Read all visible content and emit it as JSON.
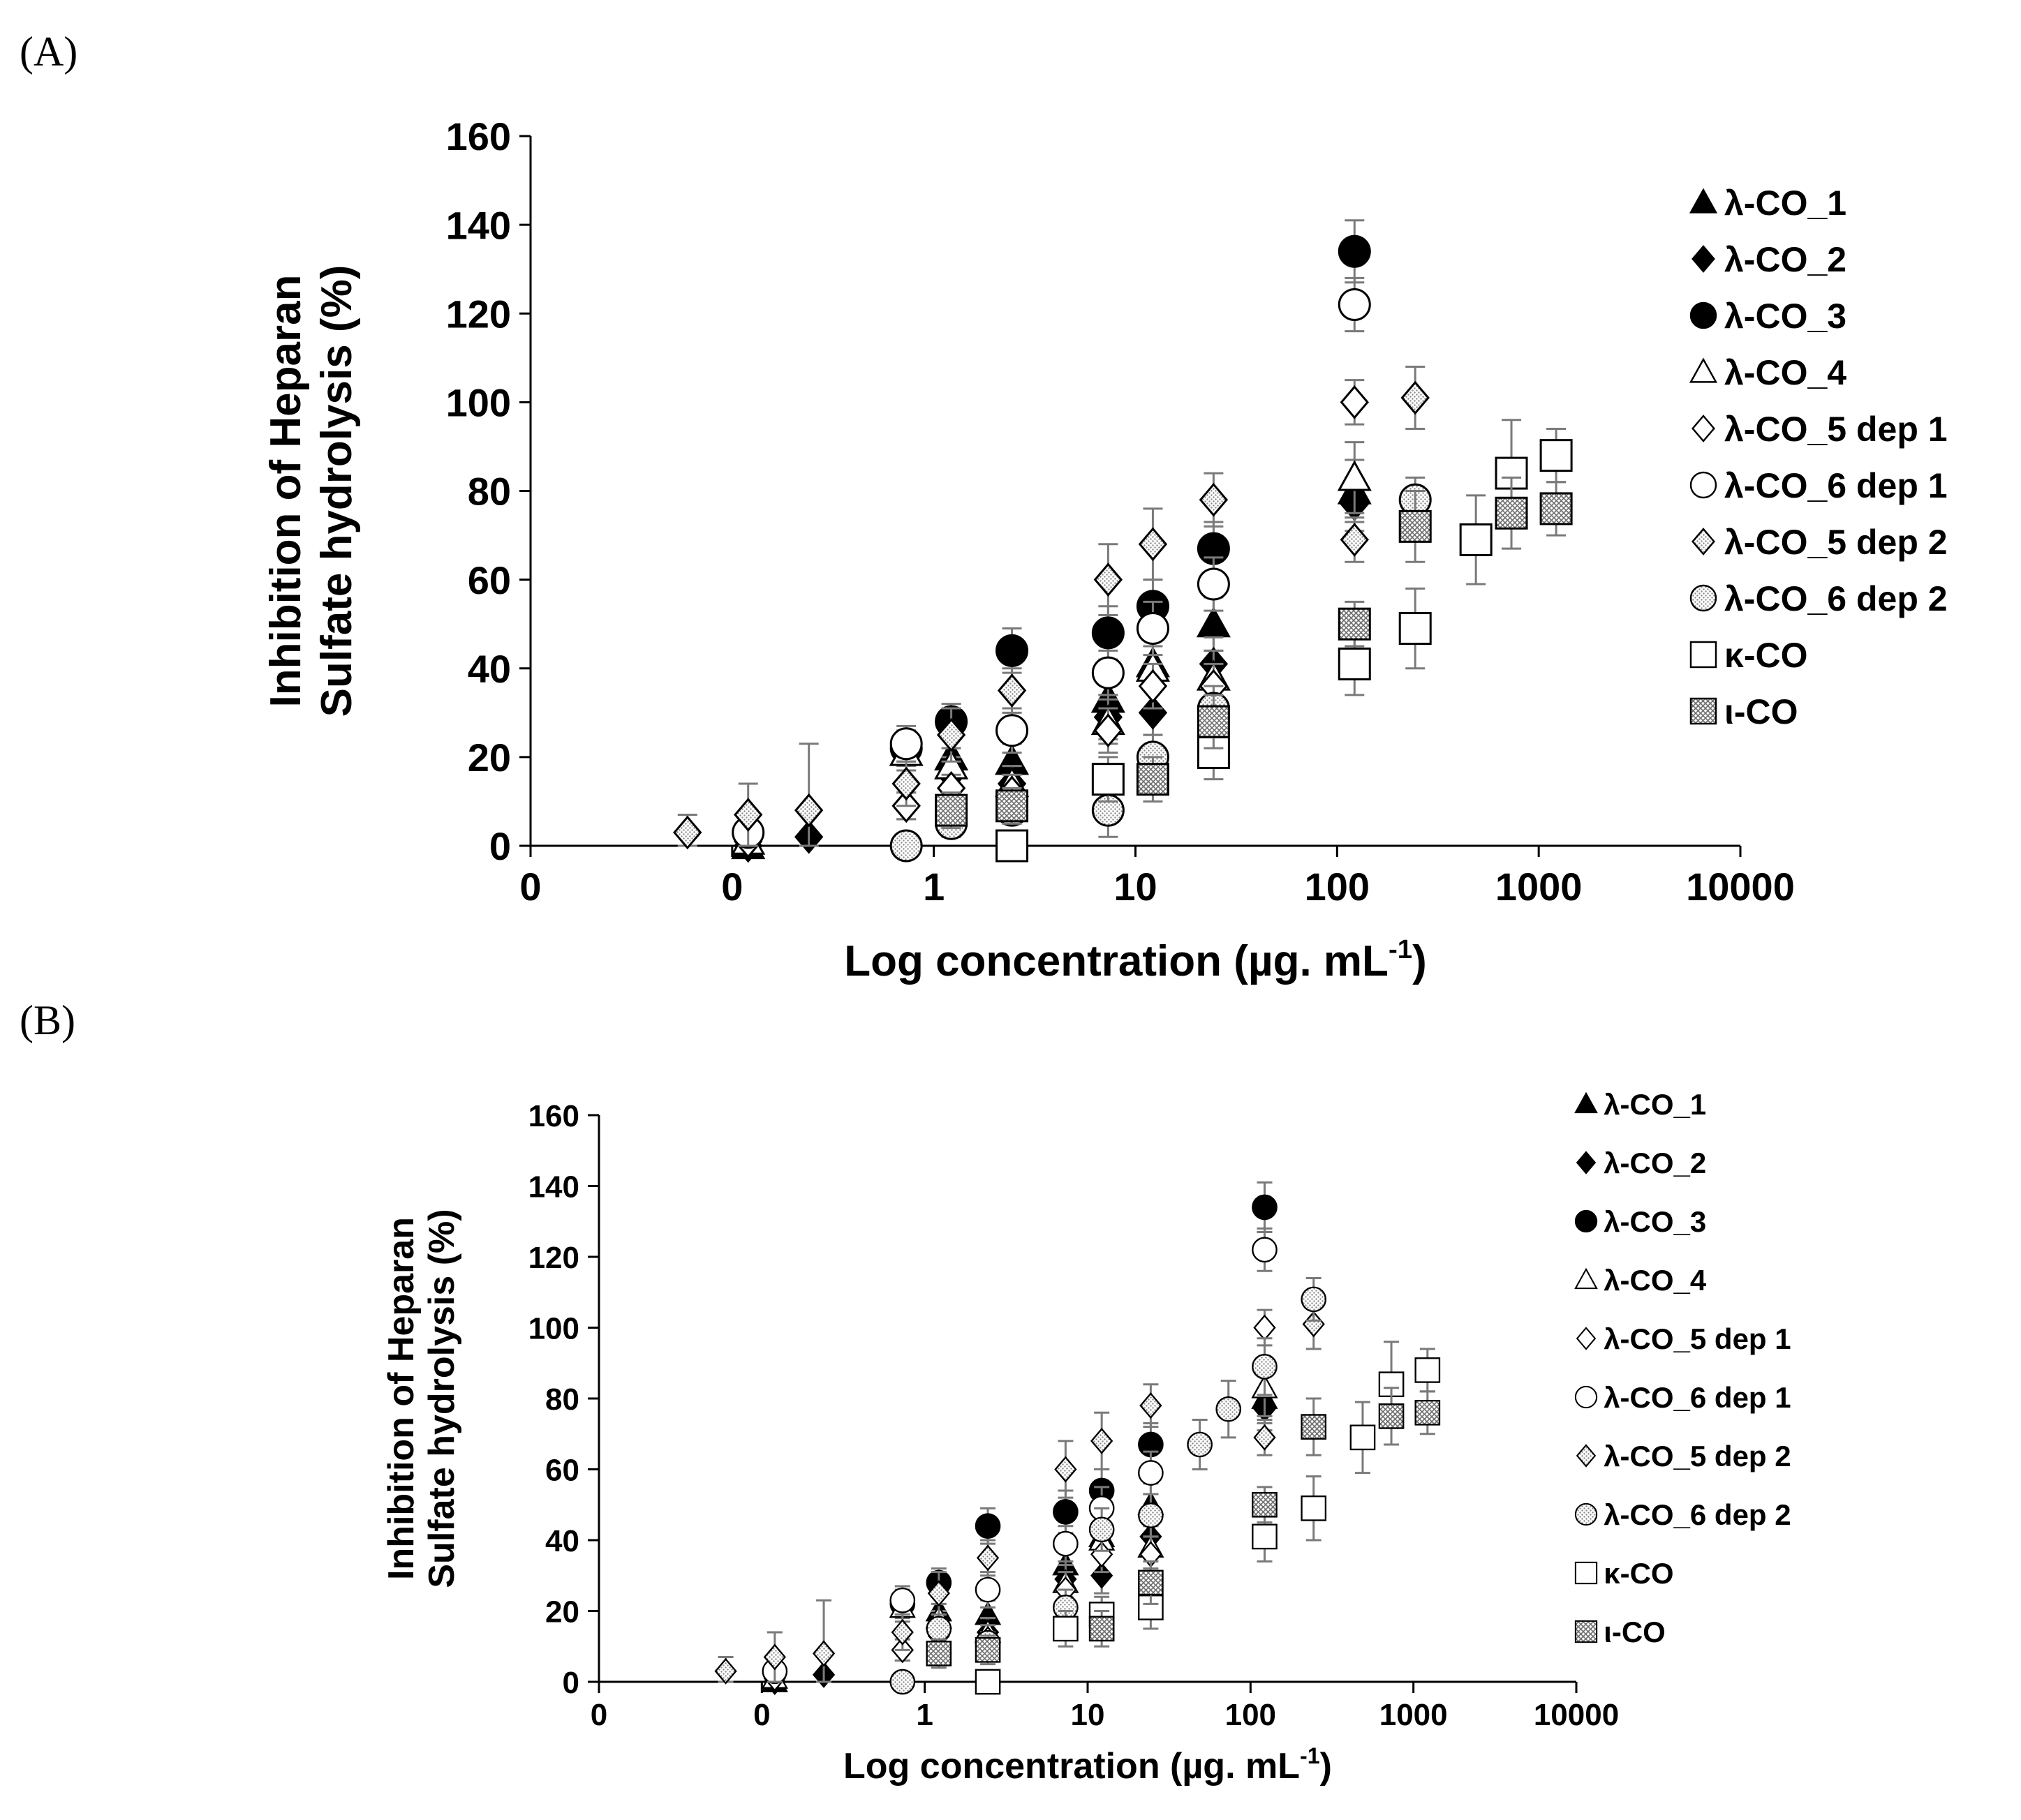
{
  "panels": {
    "a": {
      "label": "(A)"
    },
    "b": {
      "label": "(B)"
    }
  },
  "pattern_colors": {
    "stipple": "#8a8a8a",
    "mesh": "#6e6e6e"
  },
  "chart_data": [
    {
      "type": "scatter",
      "panel": "A",
      "title": "",
      "xlabel": "Log concentration  (µg. mL",
      "xlabel_sup": "-1",
      "xlabel_close": ")",
      "ylabel_line1": "Inhibition of Heparan",
      "ylabel_line2": "Sulfate hydrolysis (%)",
      "xscale": "log",
      "xlim": [
        0.01,
        10000
      ],
      "ylim": [
        0,
        160
      ],
      "xticks": [
        0.01,
        0.1,
        1,
        10,
        100,
        1000,
        10000
      ],
      "xtick_labels": [
        "0",
        "0",
        "1",
        "10",
        "100",
        "1000",
        "10000"
      ],
      "yticks": [
        0,
        20,
        40,
        60,
        80,
        100,
        120,
        140,
        160
      ],
      "ytick_labels": [
        "0",
        "20",
        "40",
        "60",
        "80",
        "100",
        "120",
        "140",
        "160"
      ],
      "legend_position": "right",
      "series": [
        {
          "name": "λ-CO_1",
          "marker": "triangle",
          "fill": "black",
          "x": [
            0.12,
            1.22,
            2.44,
            7.32,
            12.2,
            24.4,
            122
          ],
          "y": [
            0,
            20,
            19,
            33,
            41,
            50,
            80
          ],
          "err": [
            0,
            4,
            4,
            5,
            6,
            6,
            7
          ]
        },
        {
          "name": "λ-CO_2",
          "marker": "diamond",
          "fill": "black",
          "x": [
            0.12,
            0.24,
            0.73,
            1.22,
            2.44,
            7.32,
            12.2,
            24.4,
            122
          ],
          "y": [
            0,
            2,
            9,
            16,
            14,
            29,
            30,
            41,
            77
          ],
          "err": [
            0,
            0,
            3,
            4,
            4,
            5,
            5,
            6,
            6
          ]
        },
        {
          "name": "λ-CO_3",
          "marker": "circle",
          "fill": "black",
          "x": [
            0.73,
            1.22,
            2.44,
            7.32,
            12.2,
            24.4,
            122
          ],
          "y": [
            22,
            28,
            44,
            48,
            54,
            67,
            134
          ],
          "err": [
            4,
            4,
            5,
            6,
            6,
            6,
            7
          ]
        },
        {
          "name": "λ-CO_4",
          "marker": "triangle",
          "fill": "white",
          "x": [
            0.12,
            0.73,
            1.22,
            2.44,
            7.32,
            12.2,
            24.4,
            122
          ],
          "y": [
            1,
            21,
            18,
            14,
            28,
            40,
            38,
            83
          ],
          "err": [
            0,
            4,
            4,
            4,
            5,
            5,
            6,
            8
          ]
        },
        {
          "name": "λ-CO_5 dep 1",
          "marker": "diamond",
          "fill": "white",
          "x": [
            0.12,
            0.73,
            1.22,
            2.44,
            7.32,
            12.2,
            24.4,
            122
          ],
          "y": [
            1,
            9,
            13,
            12,
            26,
            36,
            36,
            100
          ],
          "err": [
            0,
            3,
            3,
            4,
            5,
            5,
            5,
            5
          ]
        },
        {
          "name": "λ-CO_6 dep 1",
          "marker": "circle",
          "fill": "white",
          "x": [
            0.12,
            0.73,
            1.22,
            2.44,
            7.32,
            12.2,
            24.4,
            122
          ],
          "y": [
            3,
            23,
            8,
            26,
            39,
            49,
            59,
            122
          ],
          "err": [
            0,
            4,
            3,
            5,
            5,
            6,
            6,
            6
          ]
        },
        {
          "name": "λ-CO_5 dep 2",
          "marker": "diamond",
          "fill": "stipple",
          "x": [
            0.06,
            0.12,
            0.24,
            0.73,
            1.22,
            2.44,
            7.32,
            12.2,
            24.4,
            122,
            244
          ],
          "y": [
            3,
            7,
            8,
            14,
            25,
            35,
            60,
            68,
            78,
            69,
            101
          ],
          "err": [
            4,
            7,
            15,
            5,
            6,
            5,
            8,
            8,
            6,
            5,
            7
          ]
        },
        {
          "name": "λ-CO_6 dep 2",
          "marker": "circle",
          "fill": "stipple",
          "x": [
            0.73,
            1.22,
            2.44,
            7.32,
            12.2,
            24.4,
            244
          ],
          "y": [
            0,
            5,
            8,
            8,
            20,
            31,
            78
          ],
          "err": [
            0,
            3,
            3,
            6,
            5,
            5,
            5
          ]
        },
        {
          "name": "κ-CO",
          "marker": "square",
          "fill": "white",
          "x": [
            2.44,
            7.32,
            24.4,
            122,
            244,
            488,
            732,
            1220
          ],
          "y": [
            0,
            15,
            21,
            41,
            49,
            69,
            84,
            88
          ],
          "err": [
            3,
            5,
            6,
            7,
            9,
            10,
            12,
            6
          ]
        },
        {
          "name": "ι-CO",
          "marker": "square",
          "fill": "mesh",
          "x": [
            1.22,
            2.44,
            12.2,
            24.4,
            122,
            244,
            732,
            1220
          ],
          "y": [
            8,
            9,
            15,
            28,
            50,
            72,
            75,
            76
          ],
          "err": [
            4,
            4,
            5,
            6,
            5,
            8,
            8,
            6
          ]
        }
      ]
    },
    {
      "type": "scatter",
      "panel": "B",
      "title": "",
      "xlabel": "Log concentration  (µg. mL",
      "xlabel_sup": "-1",
      "xlabel_close": ")",
      "ylabel_line1": "Inhibition of Heparan",
      "ylabel_line2": "Sulfate hydrolysis (%)",
      "xscale": "log",
      "xlim": [
        0.01,
        10000
      ],
      "ylim": [
        0,
        160
      ],
      "xticks": [
        0.01,
        0.1,
        1,
        10,
        100,
        1000,
        10000
      ],
      "xtick_labels": [
        "0",
        "0",
        "1",
        "10",
        "100",
        "1000",
        "10000"
      ],
      "yticks": [
        0,
        20,
        40,
        60,
        80,
        100,
        120,
        140,
        160
      ],
      "ytick_labels": [
        "0",
        "20",
        "40",
        "60",
        "80",
        "100",
        "120",
        "140",
        "160"
      ],
      "legend_position": "right",
      "series": [
        {
          "name": "λ-CO_1",
          "marker": "triangle",
          "fill": "black",
          "x": [
            0.12,
            1.22,
            2.44,
            7.32,
            12.2,
            24.4,
            122
          ],
          "y": [
            0,
            20,
            19,
            33,
            41,
            50,
            80
          ],
          "err": [
            0,
            4,
            4,
            5,
            6,
            6,
            7
          ]
        },
        {
          "name": "λ-CO_2",
          "marker": "diamond",
          "fill": "black",
          "x": [
            0.12,
            0.24,
            0.73,
            1.22,
            2.44,
            7.32,
            12.2,
            24.4,
            122
          ],
          "y": [
            0,
            2,
            9,
            16,
            14,
            29,
            30,
            41,
            77
          ],
          "err": [
            0,
            0,
            3,
            4,
            4,
            5,
            5,
            6,
            6
          ]
        },
        {
          "name": "λ-CO_3",
          "marker": "circle",
          "fill": "black",
          "x": [
            0.73,
            1.22,
            2.44,
            7.32,
            12.2,
            24.4,
            122
          ],
          "y": [
            22,
            28,
            44,
            48,
            54,
            67,
            134
          ],
          "err": [
            4,
            4,
            5,
            6,
            6,
            6,
            7
          ]
        },
        {
          "name": "λ-CO_4",
          "marker": "triangle",
          "fill": "white",
          "x": [
            0.12,
            0.73,
            1.22,
            2.44,
            7.32,
            12.2,
            24.4,
            122
          ],
          "y": [
            1,
            21,
            18,
            14,
            28,
            40,
            38,
            83
          ],
          "err": [
            0,
            4,
            4,
            4,
            5,
            5,
            6,
            8
          ]
        },
        {
          "name": "λ-CO_5 dep 1",
          "marker": "diamond",
          "fill": "white",
          "x": [
            0.12,
            0.73,
            1.22,
            2.44,
            7.32,
            12.2,
            24.4,
            122
          ],
          "y": [
            1,
            9,
            13,
            12,
            26,
            36,
            36,
            100
          ],
          "err": [
            0,
            3,
            3,
            4,
            5,
            5,
            5,
            5
          ]
        },
        {
          "name": "λ-CO_6 dep 1",
          "marker": "circle",
          "fill": "white",
          "x": [
            0.12,
            0.73,
            1.22,
            2.44,
            7.32,
            12.2,
            24.4,
            122
          ],
          "y": [
            3,
            23,
            8,
            26,
            39,
            49,
            59,
            122
          ],
          "err": [
            0,
            4,
            3,
            5,
            5,
            6,
            6,
            6
          ]
        },
        {
          "name": "λ-CO_5 dep 2",
          "marker": "diamond",
          "fill": "stipple",
          "x": [
            0.06,
            0.12,
            0.24,
            0.73,
            1.22,
            2.44,
            7.32,
            12.2,
            24.4,
            122,
            244
          ],
          "y": [
            3,
            7,
            8,
            14,
            25,
            35,
            60,
            68,
            78,
            69,
            101
          ],
          "err": [
            4,
            7,
            15,
            5,
            6,
            5,
            8,
            8,
            6,
            5,
            7
          ]
        },
        {
          "name": "λ-CO_6 dep 2",
          "marker": "circle",
          "fill": "stipple",
          "x": [
            0.73,
            1.22,
            2.44,
            7.32,
            12.2,
            24.4,
            48.8,
            73.2,
            122,
            244
          ],
          "y": [
            0,
            15,
            11,
            21,
            43,
            47,
            67,
            77,
            89,
            108
          ],
          "err": [
            0,
            4,
            3,
            5,
            6,
            6,
            7,
            8,
            8,
            6
          ]
        },
        {
          "name": "κ-CO",
          "marker": "square",
          "fill": "white",
          "x": [
            2.44,
            7.32,
            12.2,
            24.4,
            122,
            244,
            488,
            732,
            1220
          ],
          "y": [
            0,
            15,
            19,
            21,
            41,
            49,
            69,
            84,
            88
          ],
          "err": [
            3,
            5,
            5,
            6,
            7,
            9,
            10,
            12,
            6
          ]
        },
        {
          "name": "ι-CO",
          "marker": "square",
          "fill": "mesh",
          "x": [
            1.22,
            2.44,
            12.2,
            24.4,
            122,
            244,
            732,
            1220
          ],
          "y": [
            8,
            9,
            15,
            28,
            50,
            72,
            75,
            76
          ],
          "err": [
            4,
            4,
            5,
            6,
            5,
            8,
            8,
            6
          ]
        }
      ]
    }
  ]
}
